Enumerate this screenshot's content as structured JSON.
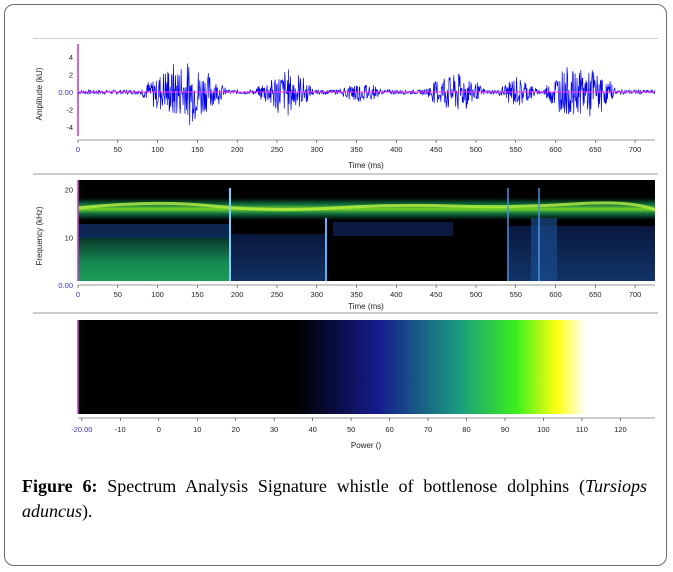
{
  "figure": {
    "panels": [
      {
        "name": "amplitude",
        "ylabel": "Amplitude (kU)",
        "xlabel": "Time (ms)",
        "y_ticks": [
          "4",
          "2",
          "0.00",
          "-2",
          "-4"
        ],
        "y_values": [
          4,
          2,
          0,
          -2,
          -4
        ],
        "ylim": [
          -5.5,
          5.5
        ],
        "x_ticks": [
          "0",
          "50",
          "100",
          "150",
          "200",
          "250",
          "300",
          "350",
          "400",
          "450",
          "500",
          "550",
          "600",
          "650",
          "700"
        ],
        "xlim": [
          0,
          725
        ]
      },
      {
        "name": "spectrogram",
        "ylabel": "Frequency (kHz)",
        "xlabel": "Time (ms)",
        "y_ticks": [
          "20",
          "10",
          "0.00"
        ],
        "y_values": [
          20,
          10,
          0
        ],
        "ylim": [
          0,
          22
        ],
        "x_ticks": [
          "0",
          "50",
          "100",
          "150",
          "200",
          "250",
          "300",
          "350",
          "400",
          "450",
          "500",
          "550",
          "600",
          "650",
          "700"
        ],
        "xlim": [
          0,
          725
        ]
      },
      {
        "name": "power-colorbar",
        "xlabel": "Power ()",
        "x_ticks": [
          "-20.00",
          "-10",
          "0",
          "10",
          "20",
          "30",
          "40",
          "50",
          "60",
          "70",
          "80",
          "90",
          "100",
          "110",
          "120"
        ],
        "xlim": [
          -21,
          129
        ]
      }
    ],
    "colors": {
      "waveform": "#0000ee",
      "zero_line": "#ff33ff",
      "axis_marker": "#cc33cc",
      "tick_label_axis": "#3333cc"
    }
  },
  "chart_data": {
    "type": "line",
    "title": "",
    "xlabel": "Time (ms)",
    "ylabel": "Amplitude (kU)",
    "xlim": [
      0,
      725
    ],
    "ylim": [
      -5.5,
      5.5
    ],
    "bursts": [
      {
        "start": 75,
        "end": 190,
        "peak": 4.2
      },
      {
        "start": 220,
        "end": 300,
        "peak": 3.0
      },
      {
        "start": 325,
        "end": 385,
        "peak": 1.5
      },
      {
        "start": 430,
        "end": 515,
        "peak": 2.8
      },
      {
        "start": 525,
        "end": 580,
        "peak": 2.0
      },
      {
        "start": 580,
        "end": 680,
        "peak": 3.8
      }
    ],
    "whistle_frequency_khz": 15,
    "colorbar": {
      "min": -20,
      "max": 120,
      "stops": [
        {
          "value": 35,
          "color": "#000000"
        },
        {
          "value": 55,
          "color": "#1a1aa0"
        },
        {
          "value": 80,
          "color": "#1fc060"
        },
        {
          "value": 93,
          "color": "#3df21a"
        },
        {
          "value": 103,
          "color": "#ffff10"
        },
        {
          "value": 112,
          "color": "#ffffff"
        }
      ]
    }
  },
  "caption": {
    "label": "Figure 6:",
    "text": " Spectrum Analysis Signature whistle of bottlenose dolphins (",
    "species": "Tursiops aduncus",
    "end": ")."
  }
}
